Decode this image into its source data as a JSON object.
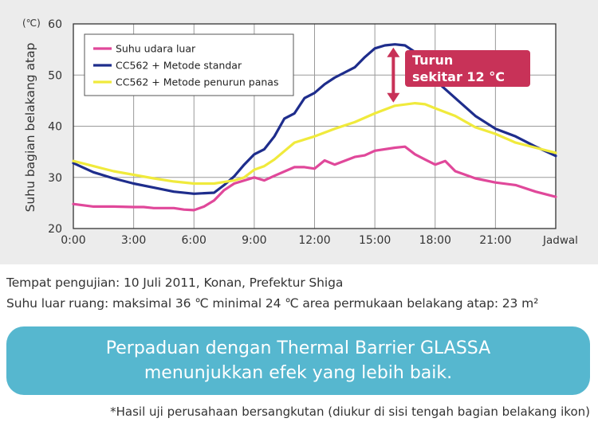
{
  "chart_data": {
    "type": "line",
    "ylabel": "Suhu bagian belakang atap",
    "y_unit": "(℃)",
    "ylim": [
      20,
      60
    ],
    "y_ticks": [
      "20",
      "30",
      "40",
      "50",
      "60"
    ],
    "x_ticks": [
      "0:00",
      "3:00",
      "6:00",
      "9:00",
      "12:00",
      "15:00",
      "18:00",
      "21:00"
    ],
    "xlabel": "Jadwal",
    "xlim": [
      0,
      24
    ],
    "grid": true,
    "legend_position": "top-left",
    "series": [
      {
        "name": "Suhu udara luar",
        "color": "#e0489a",
        "x": [
          0,
          1,
          2,
          3,
          3.5,
          4,
          5,
          5.5,
          6,
          6.5,
          7,
          7.5,
          8,
          9,
          9.5,
          10,
          11,
          11.5,
          12,
          12.5,
          13,
          14,
          14.5,
          15,
          16,
          16.5,
          17,
          17.5,
          18,
          18.5,
          19,
          20,
          21,
          22,
          23,
          24
        ],
        "y": [
          24.8,
          24.3,
          24.3,
          24.2,
          24.2,
          24.0,
          24.0,
          23.7,
          23.6,
          24.3,
          25.5,
          27.5,
          28.8,
          30.0,
          29.4,
          30.3,
          32.0,
          32.0,
          31.7,
          33.3,
          32.5,
          34.0,
          34.3,
          35.2,
          35.8,
          36.0,
          34.5,
          33.5,
          32.5,
          33.2,
          31.2,
          29.8,
          29.0,
          28.5,
          27.2,
          26.2
        ]
      },
      {
        "name": "CC562 + Metode standar",
        "color": "#1e2d8c",
        "x": [
          0,
          1,
          2,
          3,
          4,
          5,
          6,
          7,
          7.5,
          8,
          8.5,
          9,
          9.5,
          10,
          10.5,
          11,
          11.5,
          12,
          12.5,
          13,
          14,
          14.5,
          15,
          15.5,
          16,
          16.5,
          17,
          17.5,
          18,
          19,
          20,
          21,
          22,
          23,
          24
        ],
        "y": [
          32.8,
          31.0,
          29.8,
          28.8,
          28.0,
          27.2,
          26.8,
          27.0,
          28.5,
          30.2,
          32.5,
          34.5,
          35.5,
          38.0,
          41.5,
          42.5,
          45.5,
          46.5,
          48.2,
          49.5,
          51.5,
          53.5,
          55.2,
          55.8,
          56.0,
          55.8,
          54.5,
          51.5,
          49.0,
          45.5,
          42.0,
          39.5,
          38.0,
          36.0,
          34.2
        ]
      },
      {
        "name": "CC562 + Metode penurun panas",
        "color": "#f0ea3c",
        "x": [
          0,
          1,
          2,
          3,
          4,
          5,
          6,
          7,
          8,
          8.5,
          9,
          9.5,
          10,
          11,
          12,
          13,
          14,
          15,
          16,
          17,
          17.5,
          18,
          19,
          20,
          21,
          22,
          23,
          24
        ],
        "y": [
          33.2,
          32.2,
          31.2,
          30.5,
          29.8,
          29.2,
          28.8,
          28.8,
          29.4,
          30.0,
          31.5,
          32.2,
          33.5,
          36.8,
          38.0,
          39.5,
          40.8,
          42.5,
          44.0,
          44.5,
          44.3,
          43.5,
          42.0,
          39.8,
          38.5,
          36.8,
          35.8,
          34.8
        ]
      }
    ],
    "annotation": {
      "lines": [
        "Turun",
        "sekitar 12 °C"
      ],
      "color": "#c83258",
      "arrow_x": 16,
      "arrow_y_top": 56,
      "arrow_y_bottom": 44
    }
  },
  "notes": {
    "test_place": "Tempat pengujian: 10 Juli 2011, Konan, Prefektur Shiga",
    "conditions": "Suhu luar ruang: maksimal 36 ℃ minimal 24 ℃ area permukaan belakang atap: 23 m²"
  },
  "banner": {
    "line1": "Perpaduan dengan Thermal Barrier GLASSA",
    "line2": "menunjukkan efek yang lebih baik."
  },
  "footnote": "*Hasil uji perusahaan bersangkutan (diukur di sisi tengah bagian belakang ikon)"
}
